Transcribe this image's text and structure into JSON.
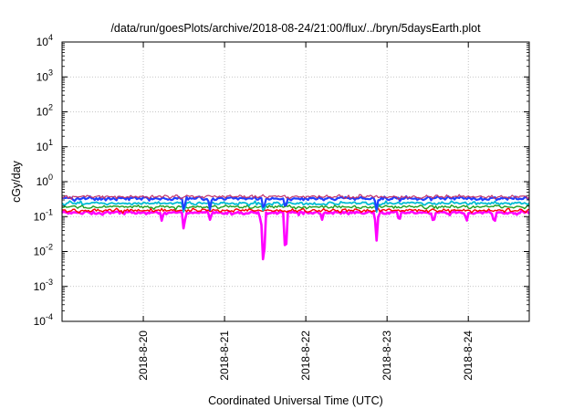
{
  "chart_data": {
    "type": "line",
    "title": "/data/run/goesPlots/archive/2018-08-24/21:00/flux/../bryn/5daysEarth.plot",
    "xlabel": "Coordinated Universal Time (UTC)",
    "ylabel": "cGy/day",
    "yscale": "log",
    "ylim": [
      0.0001,
      10000
    ],
    "xlim": [
      0,
      5.75
    ],
    "x_unit": "days after 2018-08-19 00:00",
    "y_ticks": [
      {
        "base": "10",
        "exp": "-4",
        "value": 0.0001
      },
      {
        "base": "10",
        "exp": "-3",
        "value": 0.001
      },
      {
        "base": "10",
        "exp": "-2",
        "value": 0.01
      },
      {
        "base": "10",
        "exp": "-1",
        "value": 0.1
      },
      {
        "base": "10",
        "exp": "0",
        "value": 1
      },
      {
        "base": "10",
        "exp": "1",
        "value": 10
      },
      {
        "base": "10",
        "exp": "2",
        "value": 100
      },
      {
        "base": "10",
        "exp": "3",
        "value": 1000
      },
      {
        "base": "10",
        "exp": "4",
        "value": 10000
      }
    ],
    "x_ticks": [
      {
        "label": "2018-8-20",
        "value": 1
      },
      {
        "label": "2018-8-21",
        "value": 2
      },
      {
        "label": "2018-8-22",
        "value": 3
      },
      {
        "label": "2018-8-23",
        "value": 4
      },
      {
        "label": "2018-8-24",
        "value": 5
      }
    ],
    "grid": true,
    "legend": "none",
    "series": [
      {
        "color": "#ff00ff",
        "base": 0.13,
        "width": 2.6,
        "dips": [
          {
            "x": 1.23,
            "y": 0.07
          },
          {
            "x": 1.5,
            "y": 0.035
          },
          {
            "x": 1.82,
            "y": 0.08
          },
          {
            "x": 2.45,
            "y": 0.05
          },
          {
            "x": 2.48,
            "y": 0.0015
          },
          {
            "x": 2.75,
            "y": 0.004
          },
          {
            "x": 3.2,
            "y": 0.08
          },
          {
            "x": 3.87,
            "y": 0.018
          },
          {
            "x": 4.15,
            "y": 0.07
          },
          {
            "x": 4.57,
            "y": 0.06
          },
          {
            "x": 4.98,
            "y": 0.07
          },
          {
            "x": 5.32,
            "y": 0.06
          }
        ]
      },
      {
        "color": "#ff0000",
        "base": 0.15,
        "width": 1.4,
        "dips": []
      },
      {
        "color": "#1e9e1e",
        "base": 0.19,
        "width": 1.4,
        "dips": []
      },
      {
        "color": "#00bcd4",
        "base": 0.24,
        "width": 1.8,
        "dips": [
          {
            "x": 1.5,
            "y": 0.12
          },
          {
            "x": 2.48,
            "y": 0.12
          },
          {
            "x": 3.87,
            "y": 0.13
          }
        ]
      },
      {
        "color": "#1f3fff",
        "base": 0.33,
        "width": 2.2,
        "dips": [
          {
            "x": 1.5,
            "y": 0.14
          },
          {
            "x": 1.82,
            "y": 0.15
          },
          {
            "x": 2.48,
            "y": 0.15
          },
          {
            "x": 2.75,
            "y": 0.15
          },
          {
            "x": 3.87,
            "y": 0.15
          }
        ]
      },
      {
        "color": "#c0306a",
        "base": 0.37,
        "width": 1.2,
        "dips": []
      }
    ]
  }
}
